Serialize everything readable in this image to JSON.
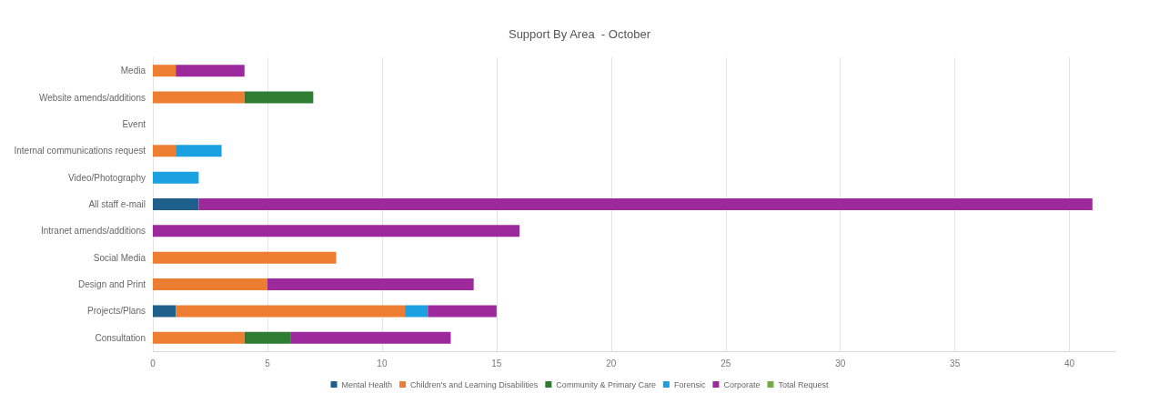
{
  "chart_data": {
    "type": "bar",
    "orientation": "horizontal",
    "stacked": true,
    "title": "Support By Area  - October",
    "categories": [
      "Media",
      "Website amends/additions",
      "Event",
      "Internal communications request",
      "Video/Photography",
      "All staff e-mail",
      "Intranet amends/additions",
      "Social Media",
      "Design and Print",
      "Projects/Plans",
      "Consultation"
    ],
    "series": [
      {
        "name": "Mental Health",
        "color": "#1f5f8b",
        "values": [
          null,
          null,
          null,
          null,
          null,
          2,
          null,
          null,
          null,
          1,
          null
        ]
      },
      {
        "name": "Children's and Learning Disabilities",
        "color": "#ed7d31",
        "values": [
          1,
          4,
          null,
          1,
          null,
          null,
          null,
          8,
          5,
          10,
          4
        ]
      },
      {
        "name": "Community & Primary Care",
        "color": "#2e7d32",
        "values": [
          null,
          3,
          null,
          null,
          null,
          null,
          null,
          null,
          null,
          null,
          2
        ]
      },
      {
        "name": "Forensic",
        "color": "#1ba1e2",
        "values": [
          null,
          null,
          null,
          2,
          2,
          null,
          null,
          null,
          null,
          1,
          null
        ]
      },
      {
        "name": "Corporate",
        "color": "#9c2a9c",
        "values": [
          3,
          null,
          null,
          null,
          null,
          39,
          16,
          null,
          9,
          3,
          7
        ]
      },
      {
        "name": "Total Request",
        "color": "#70ad47",
        "values": [
          null,
          null,
          null,
          null,
          null,
          null,
          null,
          null,
          null,
          null,
          null
        ]
      }
    ],
    "xlim": [
      0,
      42
    ],
    "xticks": [
      0,
      5,
      10,
      15,
      20,
      25,
      30,
      35,
      40
    ],
    "grid": "x",
    "legend": "bottom"
  }
}
